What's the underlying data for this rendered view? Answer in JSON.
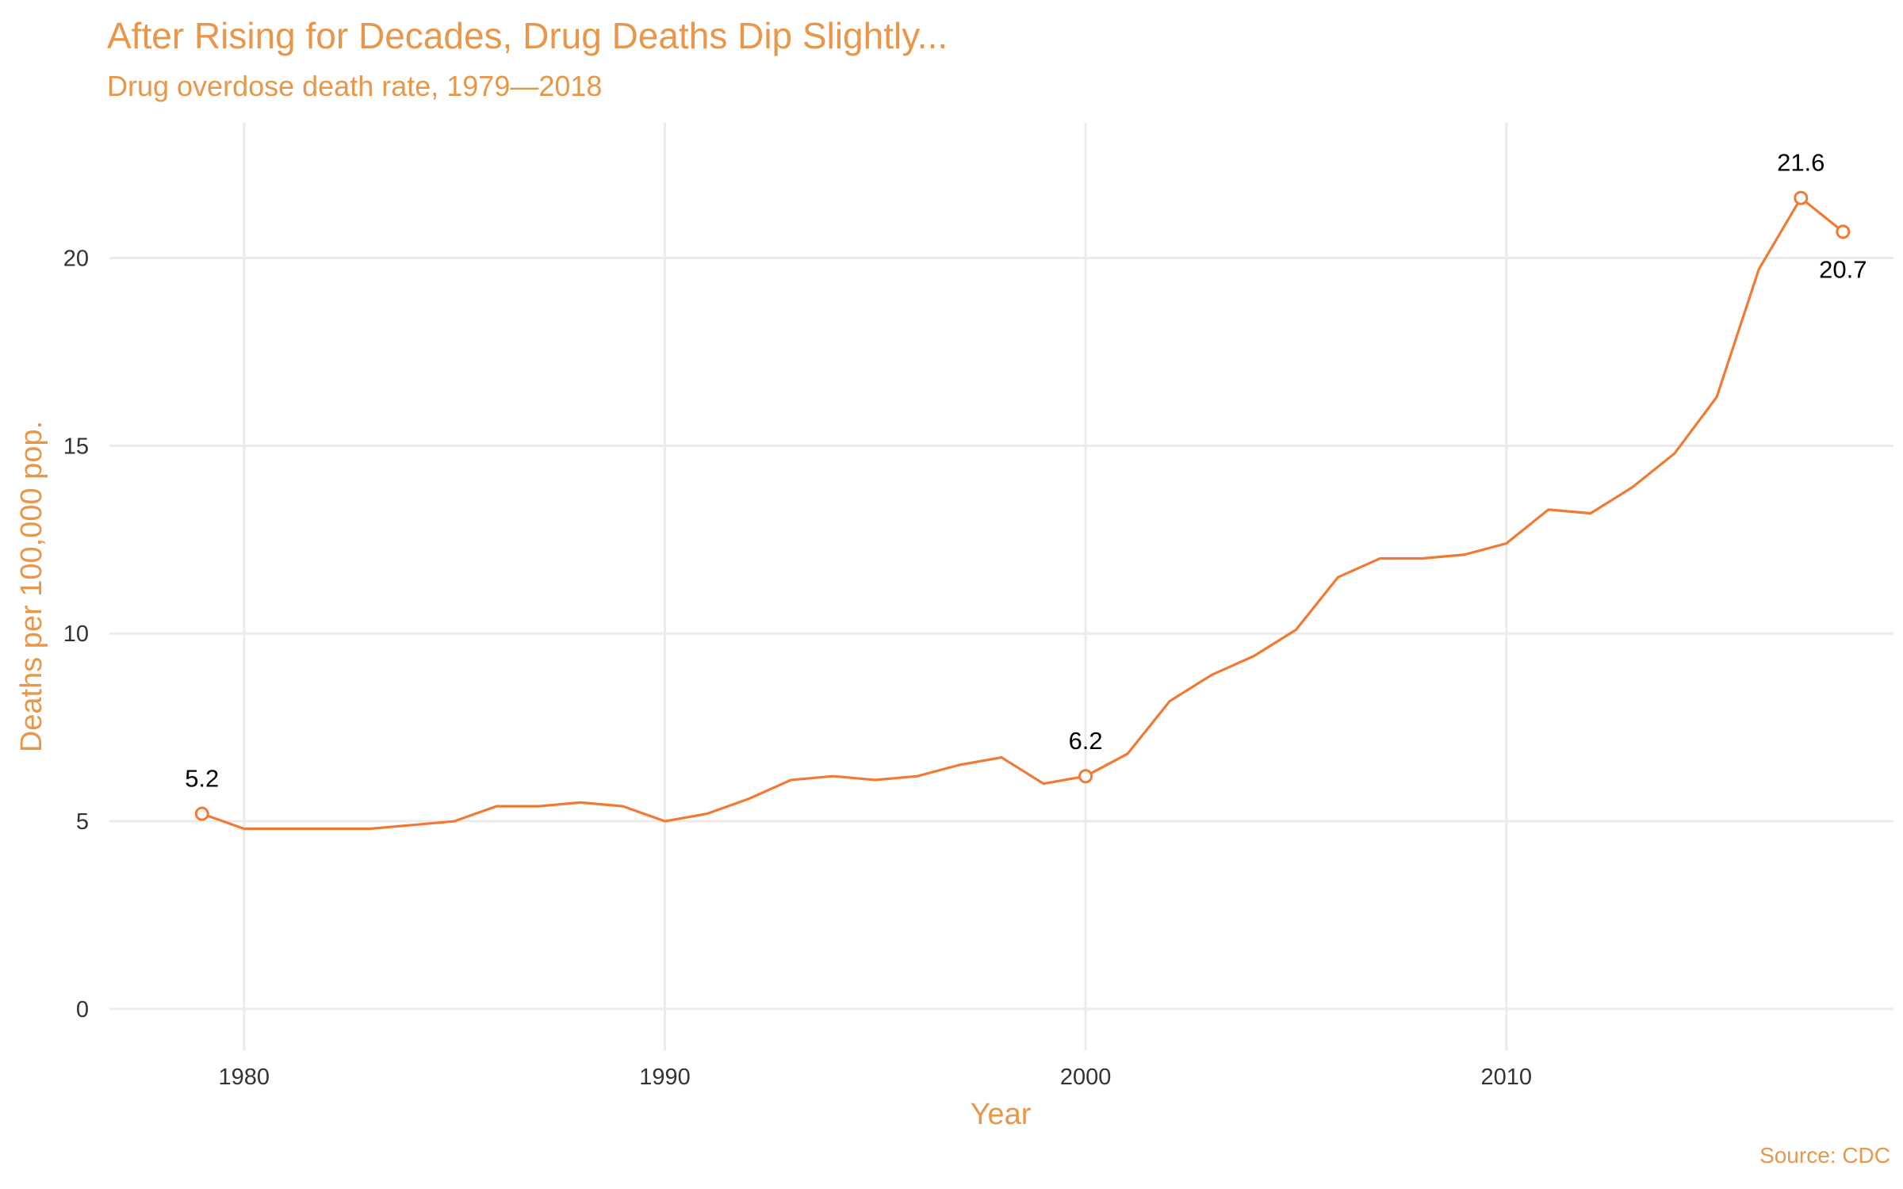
{
  "chart_data": {
    "type": "line",
    "title": "After Rising for Decades, Drug Deaths Dip Slightly...",
    "subtitle": "Drug overdose death rate, 1979—2018",
    "xlabel": "Year",
    "ylabel": "Deaths per 100,000 pop.",
    "caption": "Source: CDC",
    "xlim": [
      1976.8,
      2019.2
    ],
    "ylim": [
      -1.1,
      23.6
    ],
    "x_ticks": [
      1980,
      1990,
      2000,
      2010
    ],
    "y_ticks": [
      0,
      5,
      10,
      15,
      20
    ],
    "grid": true,
    "line_color": "#F07A33",
    "series": [
      {
        "x": [
          1979,
          1980,
          1981,
          1982,
          1983,
          1984,
          1985,
          1986,
          1987,
          1988,
          1989,
          1990,
          1991,
          1992,
          1993,
          1994,
          1995,
          1996,
          1997,
          1998,
          1999,
          2000,
          2001,
          2002,
          2003,
          2004,
          2005,
          2006,
          2007,
          2008,
          2009,
          2010,
          2011,
          2012,
          2013,
          2014,
          2015,
          2016,
          2017,
          2018
        ],
        "values": [
          5.2,
          4.8,
          4.8,
          4.8,
          4.8,
          4.9,
          5.0,
          5.4,
          5.4,
          5.5,
          5.4,
          5.0,
          5.2,
          5.6,
          6.1,
          6.2,
          6.1,
          6.2,
          6.5,
          6.7,
          6.0,
          6.2,
          6.8,
          8.2,
          8.9,
          9.4,
          10.1,
          11.5,
          12.0,
          12.0,
          12.1,
          12.4,
          13.3,
          13.2,
          13.9,
          14.8,
          16.3,
          19.7,
          21.6,
          20.7
        ]
      }
    ],
    "annotations": [
      {
        "x": 1979,
        "y": 5.2,
        "text": "5.2",
        "position": "above"
      },
      {
        "x": 2000,
        "y": 6.2,
        "text": "6.2",
        "position": "above"
      },
      {
        "x": 2017,
        "y": 21.6,
        "text": "21.6",
        "position": "above"
      },
      {
        "x": 2018,
        "y": 20.7,
        "text": "20.7",
        "position": "below"
      }
    ]
  }
}
